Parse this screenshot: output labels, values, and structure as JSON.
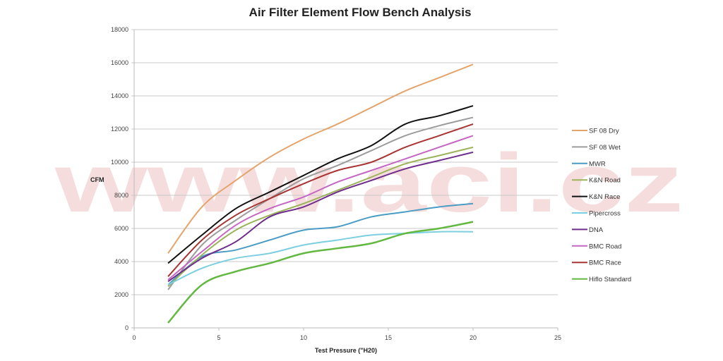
{
  "watermark": "www.aci.cz",
  "chart_data": {
    "type": "line",
    "title": "Air Filter Element Flow Bench Analysis",
    "xlabel": "Test Pressure (\"H20)",
    "ylabel": "CFM",
    "xlim": [
      0,
      25
    ],
    "ylim": [
      0,
      18000
    ],
    "xticks": [
      0,
      5,
      10,
      15,
      20,
      25
    ],
    "yticks": [
      0,
      2000,
      4000,
      6000,
      8000,
      10000,
      12000,
      14000,
      16000,
      18000
    ],
    "grid": "horizontal",
    "legend_position": "right",
    "x": [
      2,
      4,
      6,
      8,
      10,
      12,
      14,
      16,
      18,
      20
    ],
    "series": [
      {
        "name": "SF 08 Dry",
        "color": "#e3a56b",
        "values": [
          4500,
          7300,
          8900,
          10300,
          11400,
          12300,
          13300,
          14300,
          15100,
          15900
        ]
      },
      {
        "name": "SF 08 Wet",
        "color": "#9c9c9c",
        "values": [
          2300,
          5000,
          6500,
          7800,
          9000,
          9800,
          10700,
          11600,
          12200,
          12700
        ]
      },
      {
        "name": "MWR",
        "color": "#4a9cc4",
        "values": [
          2600,
          4300,
          4700,
          5300,
          5900,
          6100,
          6700,
          7000,
          7300,
          7500
        ]
      },
      {
        "name": "K&N Road",
        "color": "#9bb45a",
        "values": [
          2500,
          4400,
          5900,
          6800,
          7500,
          8300,
          9100,
          9900,
          10400,
          10900
        ]
      },
      {
        "name": "K&N Race",
        "color": "#111111",
        "values": [
          3900,
          5600,
          7200,
          8200,
          9200,
          10200,
          11000,
          12300,
          12800,
          13400
        ]
      },
      {
        "name": "Pipercross",
        "color": "#7ccfe0",
        "values": [
          2600,
          3600,
          4200,
          4500,
          5000,
          5300,
          5600,
          5700,
          5800,
          5800
        ]
      },
      {
        "name": "DNA",
        "color": "#6e2d8c",
        "values": [
          2800,
          4200,
          5200,
          6700,
          7300,
          8200,
          8900,
          9600,
          10100,
          10600
        ]
      },
      {
        "name": "BMC Road",
        "color": "#c466c4",
        "values": [
          2900,
          4600,
          6200,
          7200,
          7900,
          8800,
          9500,
          10200,
          10900,
          11600
        ]
      },
      {
        "name": "BMC Race",
        "color": "#a83434",
        "values": [
          3100,
          5300,
          6800,
          7800,
          8700,
          9500,
          10000,
          10900,
          11600,
          12300
        ]
      },
      {
        "name": "Hiflo Standard",
        "color": "#62b840",
        "values": [
          300,
          2600,
          3400,
          3900,
          4500,
          4800,
          5100,
          5700,
          6000,
          6400
        ]
      }
    ]
  }
}
